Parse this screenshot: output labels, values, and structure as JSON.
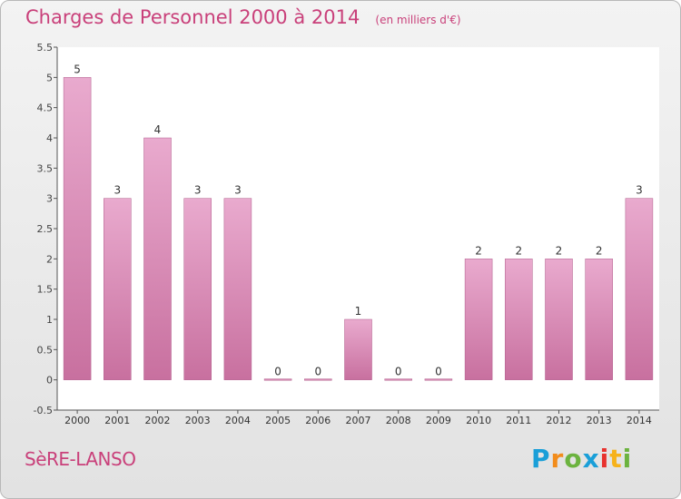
{
  "header": {
    "title": "Charges de Personnel 2000 à 2014",
    "subtitle": "(en milliers d'€)"
  },
  "footer": {
    "commune": "SèRE-LANSO",
    "logo_text": "Proxiti",
    "logo_colors": [
      "#1a9fd8",
      "#f28c1b",
      "#6cb33f",
      "#1a9fd8",
      "#e8322e",
      "#f6b21a",
      "#6cb33f"
    ]
  },
  "chart_data": {
    "type": "bar",
    "categories": [
      "2000",
      "2001",
      "2002",
      "2003",
      "2004",
      "2005",
      "2006",
      "2007",
      "2008",
      "2009",
      "2010",
      "2011",
      "2012",
      "2013",
      "2014"
    ],
    "values": [
      5,
      3,
      4,
      3,
      3,
      0,
      0,
      1,
      0,
      0,
      2,
      2,
      2,
      2,
      3
    ],
    "data_labels": [
      "5",
      "3",
      "4",
      "3",
      "3",
      "0",
      "0",
      "1",
      "0",
      "0",
      "2",
      "2",
      "2",
      "2",
      "3"
    ],
    "yticks": [
      "-0.5",
      "0",
      "0.5",
      "1",
      "1.5",
      "2",
      "2.5",
      "3",
      "3.5",
      "4",
      "4.5",
      "5",
      "5.5"
    ],
    "ylim": [
      -0.5,
      5.5
    ],
    "grid": false,
    "bar_color": "#c8709f",
    "bar_color_light": "#e9aace"
  }
}
